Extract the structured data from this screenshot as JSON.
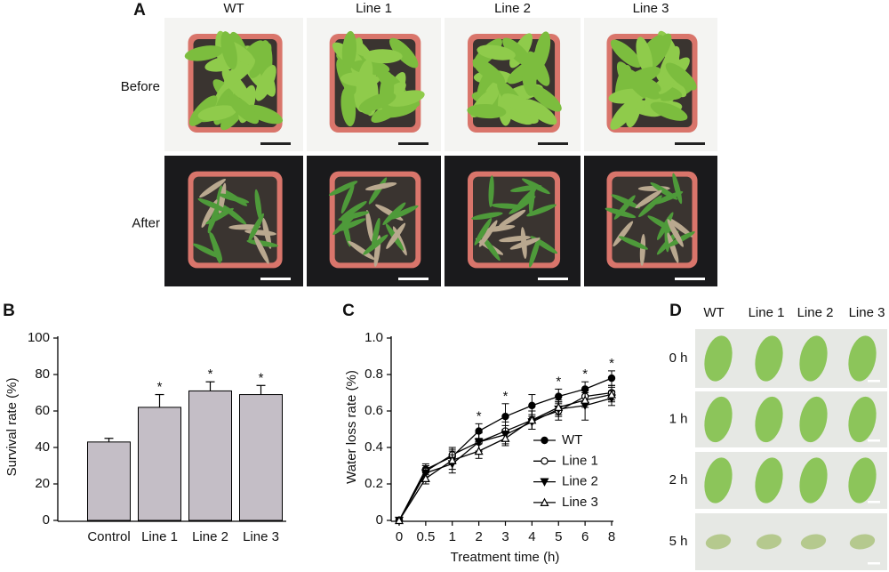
{
  "panel_a": {
    "label": "A",
    "columns": [
      "WT",
      "Line 1",
      "Line 2",
      "Line 3"
    ],
    "rows": [
      "Before",
      "After"
    ]
  },
  "chart_data": [
    {
      "type": "bar",
      "label": "B",
      "y_label": "Survival rate (%)",
      "categories": [
        "Control",
        "Line 1",
        "Line 2",
        "Line 3"
      ],
      "values": [
        43,
        62,
        71,
        69
      ],
      "errors": [
        2,
        7,
        5,
        5
      ],
      "significance": [
        null,
        "*",
        "*",
        "*"
      ],
      "color": "#c4bec6",
      "ylim": [
        0,
        100
      ],
      "yticks": [
        0,
        20,
        40,
        60,
        80,
        100
      ]
    },
    {
      "type": "line",
      "label": "C",
      "x_label": "Treatment time (h)",
      "y_label": "Water loss rate (%)",
      "categories": [
        "0",
        "0.5",
        "1",
        "2",
        "3",
        "4",
        "5",
        "6",
        "8"
      ],
      "series": [
        {
          "name": "WT",
          "color": "#000000",
          "marker": "circle",
          "filled": true,
          "values": [
            0,
            0.28,
            0.35,
            0.49,
            0.57,
            0.63,
            0.68,
            0.72,
            0.78
          ],
          "errors": [
            0,
            0.03,
            0.04,
            0.04,
            0.07,
            0.06,
            0.04,
            0.04,
            0.04
          ]
        },
        {
          "name": "Line 1",
          "color": "#000000",
          "marker": "circle",
          "filled": false,
          "values": [
            0,
            0.27,
            0.36,
            0.43,
            0.49,
            0.55,
            0.6,
            0.68,
            0.7
          ],
          "errors": [
            0,
            0.03,
            0.04,
            0.05,
            0.05,
            0.05,
            0.05,
            0.04,
            0.04
          ]
        },
        {
          "name": "Line 2",
          "color": "#000000",
          "marker": "triangle-down",
          "filled": true,
          "values": [
            0,
            0.26,
            0.31,
            0.43,
            0.47,
            0.54,
            0.61,
            0.63,
            0.67
          ],
          "errors": [
            0,
            0.04,
            0.05,
            0.05,
            0.05,
            0.04,
            0.04,
            0.08,
            0.04
          ]
        },
        {
          "name": "Line 3",
          "color": "#000000",
          "marker": "triangle-up",
          "filled": false,
          "values": [
            0,
            0.23,
            0.33,
            0.38,
            0.45,
            0.55,
            0.62,
            0.66,
            0.69
          ],
          "errors": [
            0,
            0.03,
            0.05,
            0.04,
            0.04,
            0.05,
            0.04,
            0.04,
            0.04
          ]
        }
      ],
      "significance": [
        null,
        null,
        null,
        "*",
        "*",
        null,
        "*",
        "*",
        "*"
      ],
      "ylim": [
        0,
        1.0
      ],
      "yticks": [
        0,
        0.2,
        0.4,
        0.6,
        0.8,
        {
          "value": 1.0,
          "label": "1.0"
        }
      ],
      "legend": "lower right"
    }
  ],
  "panel_d": {
    "label": "D",
    "columns": [
      "WT",
      "Line 1",
      "Line 2",
      "Line 3"
    ],
    "rows": [
      "0 h",
      "1 h",
      "2 h",
      "5 h"
    ]
  }
}
